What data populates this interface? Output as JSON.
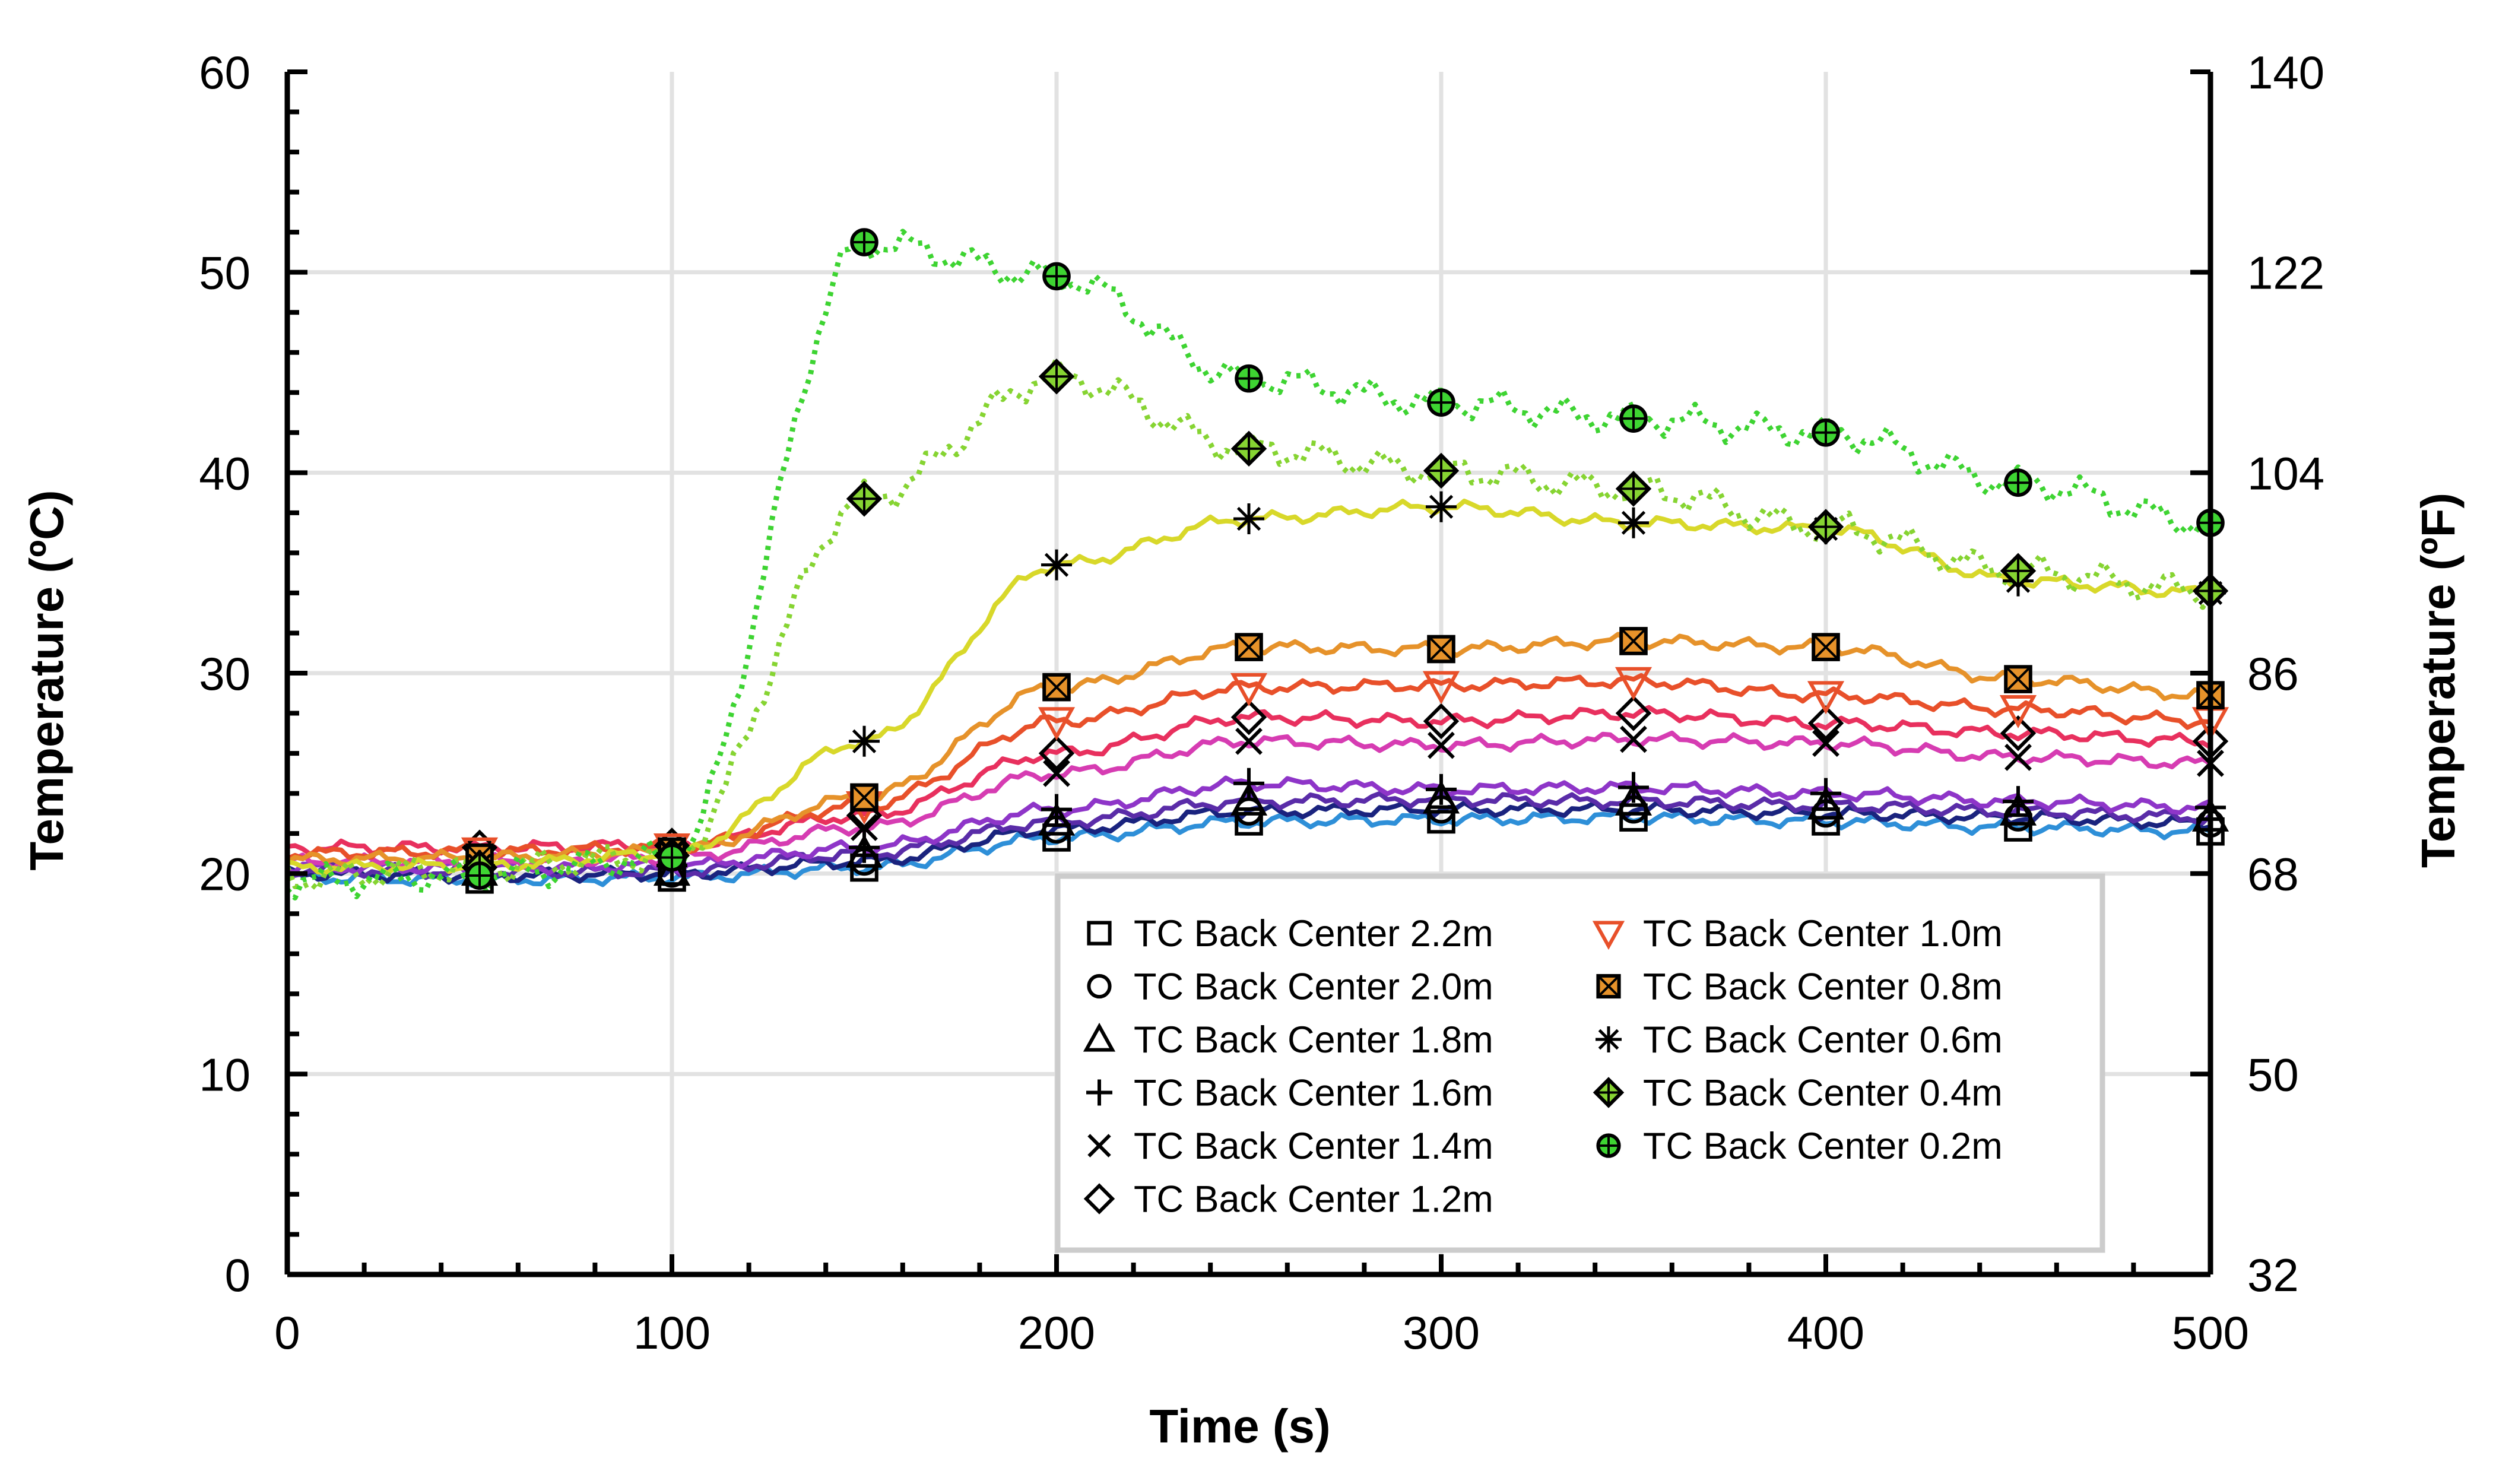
{
  "chart_data": {
    "type": "line",
    "xlabel": "Time (s)",
    "ylabel": "Temperature (ºC)",
    "y2label": "Temperature (ºF)",
    "xlim": [
      0,
      500
    ],
    "ylim": [
      0,
      60
    ],
    "y2lim": [
      32,
      140
    ],
    "xticks": [
      0,
      100,
      200,
      300,
      400,
      500
    ],
    "yticks": [
      0,
      10,
      20,
      30,
      40,
      50,
      60
    ],
    "y2ticks": [
      32,
      50,
      68,
      86,
      104,
      122,
      140
    ],
    "grid": true,
    "legend_position": "bottom-right",
    "series": [
      {
        "name": "TC Back Center 2.2m",
        "marker": "square",
        "color": "#2e8fd8",
        "style": "solid",
        "x": [
          0,
          50,
          100,
          150,
          200,
          250,
          300,
          350,
          400,
          450,
          500
        ],
        "y": [
          19.8,
          19.7,
          19.8,
          20.3,
          21.8,
          22.6,
          22.7,
          22.8,
          22.6,
          22.3,
          22.1
        ]
      },
      {
        "name": "TC Back Center 2.0m",
        "marker": "circle",
        "color": "#1a237e",
        "style": "solid",
        "x": [
          0,
          50,
          100,
          150,
          200,
          250,
          300,
          350,
          400,
          450,
          500
        ],
        "y": [
          20.0,
          19.9,
          20.0,
          20.6,
          22.2,
          23.1,
          23.2,
          23.2,
          23.0,
          22.8,
          22.5
        ]
      },
      {
        "name": "TC Back Center 1.8m",
        "marker": "triangle",
        "color": "#5a2ca8",
        "style": "solid",
        "x": [
          0,
          50,
          100,
          150,
          200,
          250,
          300,
          350,
          400,
          450,
          500
        ],
        "y": [
          20.2,
          20.1,
          20.1,
          21.0,
          22.6,
          23.6,
          23.7,
          23.6,
          23.4,
          23.1,
          22.8
        ]
      },
      {
        "name": "TC Back Center 1.6m",
        "marker": "plus",
        "color": "#8e35c8",
        "style": "solid",
        "x": [
          0,
          50,
          100,
          150,
          200,
          250,
          300,
          350,
          400,
          450,
          500
        ],
        "y": [
          20.3,
          20.3,
          20.4,
          21.3,
          23.2,
          24.5,
          24.2,
          24.3,
          24.0,
          23.6,
          23.3
        ]
      },
      {
        "name": "TC Back Center 1.4m",
        "marker": "x",
        "color": "#d63cb2",
        "style": "solid",
        "x": [
          0,
          50,
          100,
          150,
          200,
          250,
          300,
          350,
          400,
          450,
          500
        ],
        "y": [
          20.6,
          20.6,
          20.8,
          22.3,
          25.0,
          26.6,
          26.4,
          26.7,
          26.5,
          25.8,
          25.5
        ]
      },
      {
        "name": "TC Back Center 1.2m",
        "marker": "diamond",
        "color": "#e8305e",
        "style": "solid",
        "x": [
          0,
          50,
          100,
          150,
          200,
          250,
          300,
          350,
          400,
          450,
          500
        ],
        "y": [
          21.3,
          21.3,
          21.4,
          22.9,
          26.0,
          27.8,
          27.6,
          28.0,
          27.5,
          27.0,
          26.6
        ]
      },
      {
        "name": "TC Back Center 1.0m",
        "marker": "triangle-down",
        "color": "#e8502a",
        "style": "solid",
        "x": [
          0,
          50,
          100,
          150,
          200,
          250,
          300,
          350,
          400,
          450,
          500
        ],
        "y": [
          21.0,
          21.1,
          21.3,
          23.4,
          27.6,
          29.3,
          29.4,
          29.6,
          28.9,
          28.2,
          27.6
        ]
      },
      {
        "name": "TC Back Center 0.8m",
        "marker": "square-x",
        "color": "#e6922a",
        "style": "solid",
        "x": [
          0,
          50,
          100,
          150,
          200,
          250,
          300,
          350,
          400,
          450,
          500
        ],
        "y": [
          20.7,
          20.8,
          21.1,
          23.8,
          29.3,
          31.3,
          31.2,
          31.6,
          31.3,
          29.7,
          28.9
        ]
      },
      {
        "name": "TC Back Center 0.6m",
        "marker": "asterisk",
        "color": "#d8d82a",
        "style": "solid",
        "x": [
          0,
          50,
          100,
          150,
          200,
          250,
          300,
          350,
          400,
          450,
          500
        ],
        "y": [
          20.3,
          20.4,
          21.0,
          26.6,
          35.4,
          37.7,
          38.3,
          37.5,
          37.2,
          34.6,
          34.0
        ]
      },
      {
        "name": "TC Back Center 0.4m",
        "marker": "diamond-plus",
        "color": "#86d432",
        "style": "dotted",
        "x": [
          0,
          50,
          100,
          150,
          200,
          250,
          300,
          350,
          400,
          450,
          500
        ],
        "y": [
          19.8,
          20.3,
          20.9,
          38.7,
          44.8,
          41.2,
          40.1,
          39.2,
          37.3,
          35.1,
          34.1
        ]
      },
      {
        "name": "TC Back Center 0.2m",
        "marker": "circle-plus",
        "color": "#3ed432",
        "style": "dotted",
        "x": [
          0,
          50,
          100,
          150,
          200,
          250,
          300,
          350,
          400,
          450,
          500
        ],
        "y": [
          19.6,
          19.9,
          20.8,
          51.5,
          49.8,
          44.7,
          43.5,
          42.7,
          42.0,
          39.5,
          37.5
        ]
      }
    ]
  }
}
